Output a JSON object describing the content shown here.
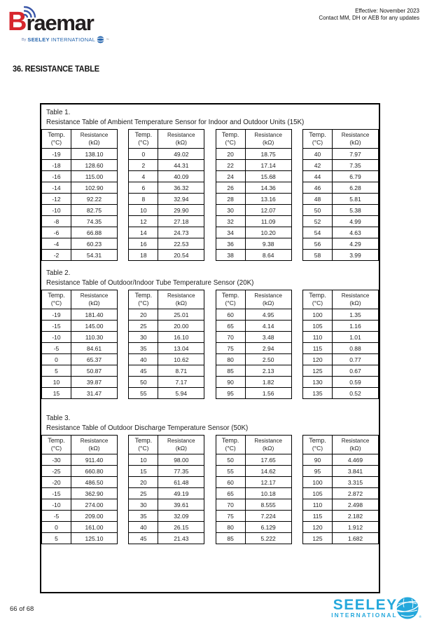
{
  "brand": {
    "b": "B",
    "wordmark_rest": "raemar",
    "by": "By",
    "seeley": "SEELEY",
    "international": "INTERNATIONAL",
    "tm": "™"
  },
  "header": {
    "effective": "Effective: November 2023",
    "contact": "Contact MM, DH or AEB for any updates"
  },
  "section_title": "36. RESISTANCE TABLE",
  "table_header": {
    "temp_label": "Temp.",
    "temp_unit": "(°C)",
    "res_label": "Resistance",
    "res_unit": "(kΩ)"
  },
  "tables": [
    {
      "label": "Table 1.",
      "title": "Resistance Table of Ambient Temperature Sensor for Indoor and Outdoor Units (15K)",
      "groups": [
        [
          [
            "-19",
            "138.10"
          ],
          [
            "-18",
            "128.60"
          ],
          [
            "-16",
            "115.00"
          ],
          [
            "-14",
            "102.90"
          ],
          [
            "-12",
            "92.22"
          ],
          [
            "-10",
            "82.75"
          ],
          [
            "-8",
            "74.35"
          ],
          [
            "-6",
            "66.88"
          ],
          [
            "-4",
            "60.23"
          ],
          [
            "-2",
            "54.31"
          ]
        ],
        [
          [
            "0",
            "49.02"
          ],
          [
            "2",
            "44.31"
          ],
          [
            "4",
            "40.09"
          ],
          [
            "6",
            "36.32"
          ],
          [
            "8",
            "32.94"
          ],
          [
            "10",
            "29.90"
          ],
          [
            "12",
            "27.18"
          ],
          [
            "14",
            "24.73"
          ],
          [
            "16",
            "22.53"
          ],
          [
            "18",
            "20.54"
          ]
        ],
        [
          [
            "20",
            "18.75"
          ],
          [
            "22",
            "17.14"
          ],
          [
            "24",
            "15.68"
          ],
          [
            "26",
            "14.36"
          ],
          [
            "28",
            "13.16"
          ],
          [
            "30",
            "12.07"
          ],
          [
            "32",
            "11.09"
          ],
          [
            "34",
            "10.20"
          ],
          [
            "36",
            "9.38"
          ],
          [
            "38",
            "8.64"
          ]
        ],
        [
          [
            "40",
            "7.97"
          ],
          [
            "42",
            "7.35"
          ],
          [
            "44",
            "6.79"
          ],
          [
            "46",
            "6.28"
          ],
          [
            "48",
            "5.81"
          ],
          [
            "50",
            "5.38"
          ],
          [
            "52",
            "4.99"
          ],
          [
            "54",
            "4.63"
          ],
          [
            "56",
            "4.29"
          ],
          [
            "58",
            "3.99"
          ]
        ]
      ]
    },
    {
      "label": "Table 2.",
      "title": "Resistance Table of Outdoor/Indoor Tube Temperature Sensor (20K)",
      "groups": [
        [
          [
            "-19",
            "181.40"
          ],
          [
            "-15",
            "145.00"
          ],
          [
            "-10",
            "110.30"
          ],
          [
            "-5",
            "84.61"
          ],
          [
            "0",
            "65.37"
          ],
          [
            "5",
            "50.87"
          ],
          [
            "10",
            "39.87"
          ],
          [
            "15",
            "31.47"
          ]
        ],
        [
          [
            "20",
            "25.01"
          ],
          [
            "25",
            "20.00"
          ],
          [
            "30",
            "16.10"
          ],
          [
            "35",
            "13.04"
          ],
          [
            "40",
            "10.62"
          ],
          [
            "45",
            "8.71"
          ],
          [
            "50",
            "7.17"
          ],
          [
            "55",
            "5.94"
          ]
        ],
        [
          [
            "60",
            "4.95"
          ],
          [
            "65",
            "4.14"
          ],
          [
            "70",
            "3.48"
          ],
          [
            "75",
            "2.94"
          ],
          [
            "80",
            "2.50"
          ],
          [
            "85",
            "2.13"
          ],
          [
            "90",
            "1.82"
          ],
          [
            "95",
            "1.56"
          ]
        ],
        [
          [
            "100",
            "1.35"
          ],
          [
            "105",
            "1.16"
          ],
          [
            "110",
            "1.01"
          ],
          [
            "115",
            "0.88"
          ],
          [
            "120",
            "0.77"
          ],
          [
            "125",
            "0.67"
          ],
          [
            "130",
            "0.59"
          ],
          [
            "135",
            "0.52"
          ]
        ]
      ]
    },
    {
      "label": "Table 3.",
      "title": "Resistance Table of Outdoor Discharge Temperature Sensor (50K)",
      "groups": [
        [
          [
            "-30",
            "911.40"
          ],
          [
            "-25",
            "660.80"
          ],
          [
            "-20",
            "486.50"
          ],
          [
            "-15",
            "362.90"
          ],
          [
            "-10",
            "274.00"
          ],
          [
            "-5",
            "209.00"
          ],
          [
            "0",
            "161.00"
          ],
          [
            "5",
            "125.10"
          ]
        ],
        [
          [
            "10",
            "98.00"
          ],
          [
            "15",
            "77.35"
          ],
          [
            "20",
            "61.48"
          ],
          [
            "25",
            "49.19"
          ],
          [
            "30",
            "39.61"
          ],
          [
            "35",
            "32.09"
          ],
          [
            "40",
            "26.15"
          ],
          [
            "45",
            "21.43"
          ]
        ],
        [
          [
            "50",
            "17.65"
          ],
          [
            "55",
            "14.62"
          ],
          [
            "60",
            "12.17"
          ],
          [
            "65",
            "10.18"
          ],
          [
            "70",
            "8.555"
          ],
          [
            "75",
            "7.224"
          ],
          [
            "80",
            "6.129"
          ],
          [
            "85",
            "5.222"
          ]
        ],
        [
          [
            "90",
            "4.469"
          ],
          [
            "95",
            "3.841"
          ],
          [
            "100",
            "3.315"
          ],
          [
            "105",
            "2.872"
          ],
          [
            "110",
            "2.498"
          ],
          [
            "115",
            "2.182"
          ],
          [
            "120",
            "1.912"
          ],
          [
            "125",
            "1.682"
          ]
        ]
      ]
    }
  ],
  "footer": {
    "page_number": "66 of 68",
    "seeley": "SEELEY",
    "international": "INTERNATIONAL",
    "reg": "®"
  },
  "colors": {
    "brand_red": "#d7272e",
    "brand_dark": "#231f20",
    "brand_blue": "#2766ae",
    "arc_blue": "#3b57a8",
    "footer_cyan": "#25a8dc",
    "table_border": "#000000"
  },
  "icons": {
    "brand_arcs": "signal-arcs-icon",
    "brand_globe": "globe-icon",
    "footer_globe": "globe-icon"
  }
}
